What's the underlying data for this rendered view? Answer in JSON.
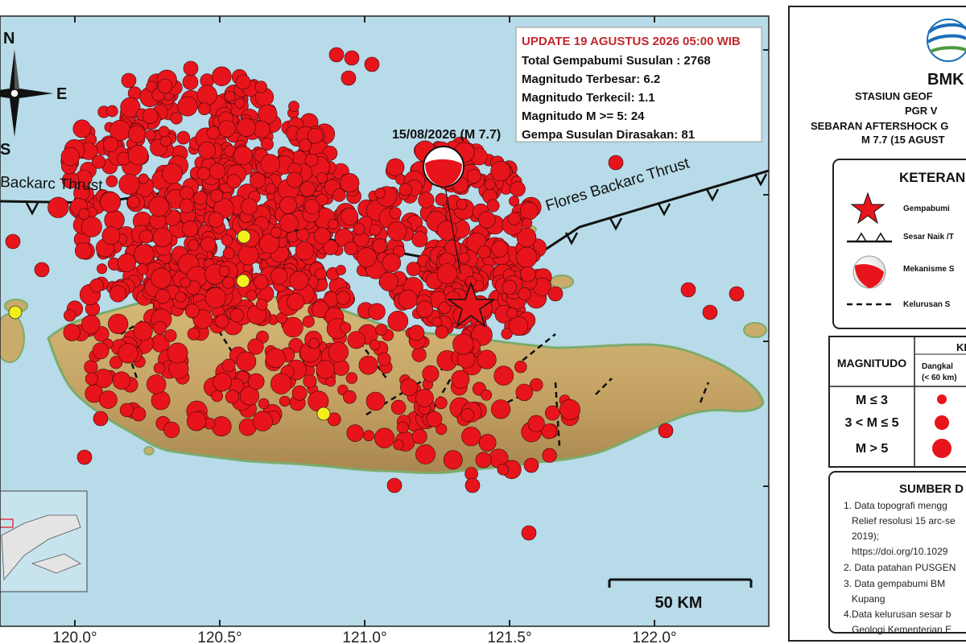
{
  "info_box": {
    "title": "UPDATE 19 AGUSTUS 2026 05:00 WIB",
    "lines": [
      "Total Gempabumi Susulan : 2768",
      "Magnitudo Terbesar: 6.2",
      "Magnitudo Terkecil: 1.1",
      "Magnitudo M >= 5: 24",
      "Gempa Susulan Dirasakan: 81"
    ],
    "title_color": "#c0282d"
  },
  "mainshock_label": "15/08/2026 (M 7.7)",
  "fault_labels": {
    "west": "Backarc Thrust",
    "east": "Flores Backarc Thrust"
  },
  "compass": {
    "n": "N",
    "e": "E",
    "s": "S"
  },
  "scale_bar": "50 KM",
  "lon_ticks": [
    "120.0°",
    "120.5°",
    "121.0°",
    "121.5°",
    "122.0°"
  ],
  "panel": {
    "logo_text": "BMK",
    "station_line1": "STASIUN GEOF",
    "station_line2": "PGR V",
    "title_line1": "SEBARAN AFTERSHOCK G",
    "title_line2": "M 7.7 (15 AGUST",
    "legend_title": "KETERAN",
    "legend_items": [
      {
        "icon": "star",
        "label": "Gempabumi"
      },
      {
        "icon": "thrust",
        "label": "Sesar Naik /T"
      },
      {
        "icon": "beachball",
        "label": "Mekanisme S"
      },
      {
        "icon": "dashed",
        "label": "Kelurusan S"
      }
    ],
    "mag_header": "MAGNITUDO",
    "depth_header": "KE",
    "depth_sub1": "Dangkal",
    "depth_sub2": "(< 60 km)",
    "mag_rows": [
      "M ≤ 3",
      "3 < M ≤ 5",
      "M > 5"
    ],
    "source_title": "SUMBER D",
    "source_items": [
      "1. Data topografi mengg",
      "Relief resolusi 15 arc-se",
      "2019);",
      "https://doi.org/10.1029",
      "2. Data patahan PUSGEN",
      "3. Data gempabumi BM",
      "Kupang",
      "4.Data kelurusan sesar b",
      "Geologi Kementerian E"
    ]
  },
  "colors": {
    "sea": "#b7dbe8",
    "land": "#c9ac6c",
    "event": "#e8141b",
    "felt": "#f4ef1a",
    "accent": "#c0282d"
  }
}
